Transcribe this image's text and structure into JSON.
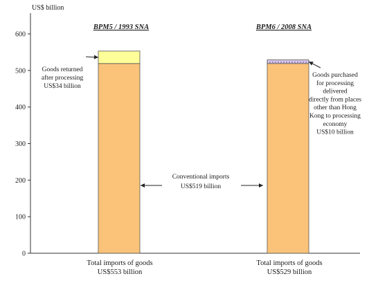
{
  "chart_data": {
    "type": "bar",
    "ylabel": "US$ billion",
    "ylim": [
      0,
      600
    ],
    "yticks": [
      0,
      100,
      200,
      300,
      400,
      500,
      600
    ],
    "grid": false,
    "categories": [
      "BPM5 / 1993 SNA",
      "BPM6 / 2008 SNA"
    ],
    "series": [
      {
        "values": [
          519,
          519
        ],
        "color": "#fbc379"
      },
      {
        "values": [
          34,
          10
        ],
        "color": "#ffff99"
      }
    ],
    "annotations": {
      "left_top_lines": [
        "Goods returned",
        "after processing",
        "US$34 billion"
      ],
      "right_top_lines": [
        "Goods purchased",
        "for processing",
        "delivered",
        "directly from places",
        "other than Hong",
        "Kong to processing",
        "economy",
        "US$10 billion"
      ],
      "middle_lines": [
        "Conventional imports",
        "US$519 billion"
      ],
      "bottom_left_lines": [
        "Total imports of goods",
        "US$553 billion"
      ],
      "bottom_right_lines": [
        "Total imports of goods",
        "US$529 billion"
      ]
    },
    "colors": {
      "conventional": "#fbc379",
      "returned": "#ffff99",
      "purchased_pattern": "#8b6fb0",
      "bar_stroke": "#555555"
    }
  }
}
